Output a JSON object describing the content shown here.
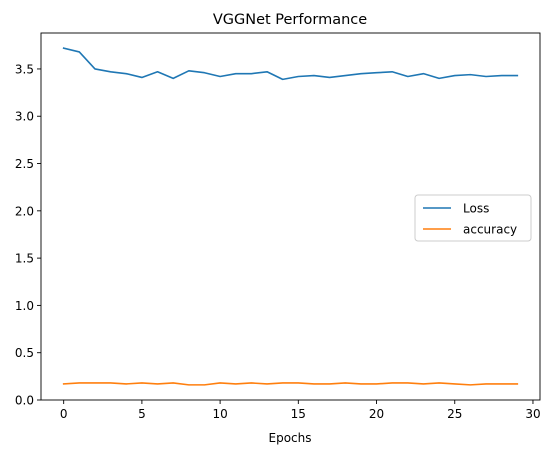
{
  "chart_data": {
    "type": "line",
    "title": "VGGNet Performance",
    "xlabel": "Epochs",
    "ylabel": "",
    "xlim": [
      -1.45,
      30.45
    ],
    "ylim": [
      0.0,
      3.88
    ],
    "xticks": [
      0,
      5,
      10,
      15,
      20,
      25,
      30
    ],
    "yticks": [
      0.0,
      0.5,
      1.0,
      1.5,
      2.0,
      2.5,
      3.0,
      3.5
    ],
    "grid": false,
    "legend_position": "center-right",
    "x": [
      0,
      1,
      2,
      3,
      4,
      5,
      6,
      7,
      8,
      9,
      10,
      11,
      12,
      13,
      14,
      15,
      16,
      17,
      18,
      19,
      20,
      21,
      22,
      23,
      24,
      25,
      26,
      27,
      28,
      29
    ],
    "series": [
      {
        "name": "Loss",
        "color": "#1f77b4",
        "values": [
          3.72,
          3.68,
          3.5,
          3.47,
          3.45,
          3.41,
          3.47,
          3.4,
          3.48,
          3.46,
          3.42,
          3.45,
          3.45,
          3.47,
          3.39,
          3.42,
          3.43,
          3.41,
          3.43,
          3.45,
          3.46,
          3.47,
          3.42,
          3.45,
          3.4,
          3.43,
          3.44,
          3.42,
          3.43,
          3.43
        ]
      },
      {
        "name": "accuracy",
        "color": "#ff7f0e",
        "values": [
          0.17,
          0.18,
          0.18,
          0.18,
          0.17,
          0.18,
          0.17,
          0.18,
          0.16,
          0.16,
          0.18,
          0.17,
          0.18,
          0.17,
          0.18,
          0.18,
          0.17,
          0.17,
          0.18,
          0.17,
          0.17,
          0.18,
          0.18,
          0.17,
          0.18,
          0.17,
          0.16,
          0.17,
          0.17,
          0.17
        ]
      }
    ]
  }
}
